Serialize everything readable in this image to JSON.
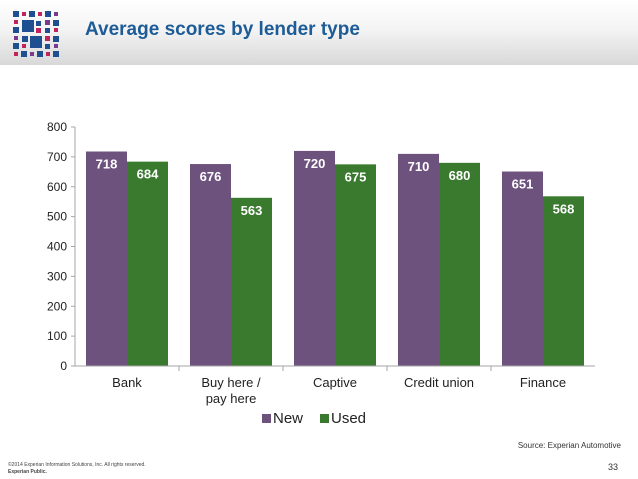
{
  "slide": {
    "title": "Average scores by lender type",
    "source": "Source: Experian Automotive",
    "copyright": "©2014 Experian Information Solutions, Inc. All rights reserved.",
    "classification": "Experian Public.",
    "page_number": "33"
  },
  "colors": {
    "new": "#6e527e",
    "used": "#3a7a2f",
    "title": "#1d5c96"
  },
  "chart_data": {
    "type": "bar",
    "categories": [
      "Bank",
      "Buy here / pay here",
      "Captive",
      "Credit union",
      "Finance"
    ],
    "category_lines": [
      [
        "Bank"
      ],
      [
        "Buy here /",
        "pay here"
      ],
      [
        "Captive"
      ],
      [
        "Credit union"
      ],
      [
        "Finance"
      ]
    ],
    "series": [
      {
        "name": "New",
        "values": [
          718,
          676,
          720,
          710,
          651
        ],
        "color": "#6e527e"
      },
      {
        "name": "Used",
        "values": [
          684,
          563,
          675,
          680,
          568
        ],
        "color": "#3a7a2f"
      }
    ],
    "ylim": [
      0,
      800
    ],
    "yticks": [
      "0",
      "100",
      "200",
      "300",
      "400",
      "500",
      "600",
      "700",
      "800"
    ],
    "title": "",
    "xlabel": "",
    "ylabel": "",
    "grid": false,
    "legend": "bottom"
  }
}
